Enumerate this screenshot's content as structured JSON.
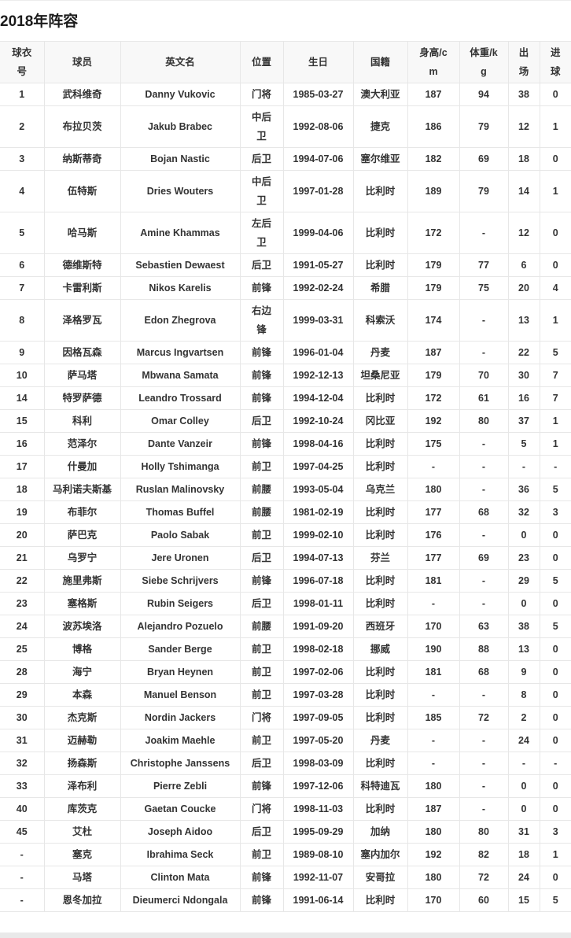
{
  "page": {
    "title": "2018年阵容"
  },
  "colors": {
    "border": "#e7e7e7",
    "header_background": "#f8f8f8",
    "text": "#333333",
    "bottom_band": "#e9e9e9"
  },
  "table": {
    "columns": [
      {
        "key": "number",
        "label": "球衣\n号",
        "width": 56
      },
      {
        "key": "player",
        "label": "球员",
        "width": 97
      },
      {
        "key": "english_name",
        "label": "英文名",
        "width": 152
      },
      {
        "key": "position",
        "label": "位置",
        "width": 55
      },
      {
        "key": "birthday",
        "label": "生日",
        "width": 89
      },
      {
        "key": "nationality",
        "label": "国籍",
        "width": 69
      },
      {
        "key": "height_cm",
        "label": "身高/c\nm",
        "width": 66
      },
      {
        "key": "weight_kg",
        "label": "体重/k\ng",
        "width": 62
      },
      {
        "key": "appearances",
        "label": "出\n场",
        "width": 40
      },
      {
        "key": "goals",
        "label": "进\n球",
        "width": 40
      }
    ],
    "rows": [
      [
        "1",
        "武科维奇",
        "Danny Vukovic",
        "门将",
        "1985-03-27",
        "澳大利亚",
        "187",
        "94",
        "38",
        "0"
      ],
      [
        "2",
        "布拉贝茨",
        "Jakub Brabec",
        "中后\n卫",
        "1992-08-06",
        "捷克",
        "186",
        "79",
        "12",
        "1"
      ],
      [
        "3",
        "纳斯蒂奇",
        "Bojan Nastic",
        "后卫",
        "1994-07-06",
        "塞尔维亚",
        "182",
        "69",
        "18",
        "0"
      ],
      [
        "4",
        "伍特斯",
        "Dries Wouters",
        "中后\n卫",
        "1997-01-28",
        "比利时",
        "189",
        "79",
        "14",
        "1"
      ],
      [
        "5",
        "哈马斯",
        "Amine Khammas",
        "左后\n卫",
        "1999-04-06",
        "比利时",
        "172",
        "-",
        "12",
        "0"
      ],
      [
        "6",
        "德维斯特",
        "Sebastien Dewaest",
        "后卫",
        "1991-05-27",
        "比利时",
        "179",
        "77",
        "6",
        "0"
      ],
      [
        "7",
        "卡雷利斯",
        "Nikos Karelis",
        "前锋",
        "1992-02-24",
        "希腊",
        "179",
        "75",
        "20",
        "4"
      ],
      [
        "8",
        "泽格罗瓦",
        "Edon Zhegrova",
        "右边\n锋",
        "1999-03-31",
        "科索沃",
        "174",
        "-",
        "13",
        "1"
      ],
      [
        "9",
        "因格瓦森",
        "Marcus Ingvartsen",
        "前锋",
        "1996-01-04",
        "丹麦",
        "187",
        "-",
        "22",
        "5"
      ],
      [
        "10",
        "萨马塔",
        "Mbwana Samata",
        "前锋",
        "1992-12-13",
        "坦桑尼亚",
        "179",
        "70",
        "30",
        "7"
      ],
      [
        "14",
        "特罗萨德",
        "Leandro Trossard",
        "前锋",
        "1994-12-04",
        "比利时",
        "172",
        "61",
        "16",
        "7"
      ],
      [
        "15",
        "科利",
        "Omar Colley",
        "后卫",
        "1992-10-24",
        "冈比亚",
        "192",
        "80",
        "37",
        "1"
      ],
      [
        "16",
        "范泽尔",
        "Dante Vanzeir",
        "前锋",
        "1998-04-16",
        "比利时",
        "175",
        "-",
        "5",
        "1"
      ],
      [
        "17",
        "什曼加",
        "Holly Tshimanga",
        "前卫",
        "1997-04-25",
        "比利时",
        "-",
        "-",
        "-",
        "-"
      ],
      [
        "18",
        "马利诺夫斯基",
        "Ruslan Malinovsky",
        "前腰",
        "1993-05-04",
        "乌克兰",
        "180",
        "-",
        "36",
        "5"
      ],
      [
        "19",
        "布菲尔",
        "Thomas Buffel",
        "前腰",
        "1981-02-19",
        "比利时",
        "177",
        "68",
        "32",
        "3"
      ],
      [
        "20",
        "萨巴克",
        "Paolo Sabak",
        "前卫",
        "1999-02-10",
        "比利时",
        "176",
        "-",
        "0",
        "0"
      ],
      [
        "21",
        "乌罗宁",
        "Jere Uronen",
        "后卫",
        "1994-07-13",
        "芬兰",
        "177",
        "69",
        "23",
        "0"
      ],
      [
        "22",
        "施里弗斯",
        "Siebe Schrijvers",
        "前锋",
        "1996-07-18",
        "比利时",
        "181",
        "-",
        "29",
        "5"
      ],
      [
        "23",
        "塞格斯",
        "Rubin Seigers",
        "后卫",
        "1998-01-11",
        "比利时",
        "-",
        "-",
        "0",
        "0"
      ],
      [
        "24",
        "波苏埃洛",
        "Alejandro Pozuelo",
        "前腰",
        "1991-09-20",
        "西班牙",
        "170",
        "63",
        "38",
        "5"
      ],
      [
        "25",
        "博格",
        "Sander Berge",
        "前卫",
        "1998-02-18",
        "挪威",
        "190",
        "88",
        "13",
        "0"
      ],
      [
        "28",
        "海宁",
        "Bryan Heynen",
        "前卫",
        "1997-02-06",
        "比利时",
        "181",
        "68",
        "9",
        "0"
      ],
      [
        "29",
        "本森",
        "Manuel Benson",
        "前卫",
        "1997-03-28",
        "比利时",
        "-",
        "-",
        "8",
        "0"
      ],
      [
        "30",
        "杰克斯",
        "Nordin Jackers",
        "门将",
        "1997-09-05",
        "比利时",
        "185",
        "72",
        "2",
        "0"
      ],
      [
        "31",
        "迈赫勒",
        "Joakim Maehle",
        "前卫",
        "1997-05-20",
        "丹麦",
        "-",
        "-",
        "24",
        "0"
      ],
      [
        "32",
        "扬森斯",
        "Christophe Janssens",
        "后卫",
        "1998-03-09",
        "比利时",
        "-",
        "-",
        "-",
        "-"
      ],
      [
        "33",
        "泽布利",
        "Pierre Zebli",
        "前锋",
        "1997-12-06",
        "科特迪瓦",
        "180",
        "-",
        "0",
        "0"
      ],
      [
        "40",
        "库茨克",
        "Gaetan Coucke",
        "门将",
        "1998-11-03",
        "比利时",
        "187",
        "-",
        "0",
        "0"
      ],
      [
        "45",
        "艾杜",
        "Joseph Aidoo",
        "后卫",
        "1995-09-29",
        "加纳",
        "180",
        "80",
        "31",
        "3"
      ],
      [
        "-",
        "塞克",
        "Ibrahima Seck",
        "前卫",
        "1989-08-10",
        "塞内加尔",
        "192",
        "82",
        "18",
        "1"
      ],
      [
        "-",
        "马塔",
        "Clinton Mata",
        "前锋",
        "1992-11-07",
        "安哥拉",
        "180",
        "72",
        "24",
        "0"
      ],
      [
        "-",
        "恩冬加拉",
        "Dieumerci Ndongala",
        "前锋",
        "1991-06-14",
        "比利时",
        "170",
        "60",
        "15",
        "5"
      ]
    ]
  }
}
